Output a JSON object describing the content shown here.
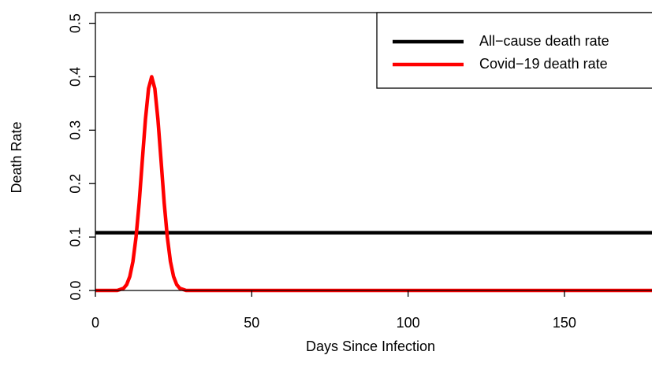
{
  "chart_data": {
    "type": "line",
    "x_label": "Days Since Infection",
    "y_label": "Death Rate",
    "xlim": [
      0,
      178
    ],
    "ylim": [
      0,
      0.52
    ],
    "xticks": [
      0,
      50,
      100,
      150
    ],
    "yticks": [
      {
        "value": 0,
        "label": "0.0"
      },
      0.1,
      0.2,
      0.3,
      0.4,
      0.5
    ],
    "legend": "topright",
    "series": [
      {
        "name": "All−cause death rate",
        "color": "#000000",
        "x": [
          0,
          178
        ],
        "values": [
          0.108,
          0.108
        ]
      },
      {
        "name": "Covid−19 death rate",
        "color": "#ff0000",
        "x": [
          0,
          6,
          7,
          8,
          9,
          10,
          11,
          12,
          13,
          14,
          15,
          16,
          17,
          18,
          19,
          20,
          21,
          22,
          23,
          24,
          25,
          26,
          27,
          28,
          29,
          30,
          178
        ],
        "values": [
          0,
          0,
          0,
          0.002,
          0.004,
          0.011,
          0.026,
          0.054,
          0.1,
          0.164,
          0.243,
          0.32,
          0.378,
          0.4,
          0.378,
          0.32,
          0.243,
          0.164,
          0.1,
          0.054,
          0.026,
          0.011,
          0.004,
          0.002,
          0,
          0,
          0
        ]
      }
    ]
  }
}
